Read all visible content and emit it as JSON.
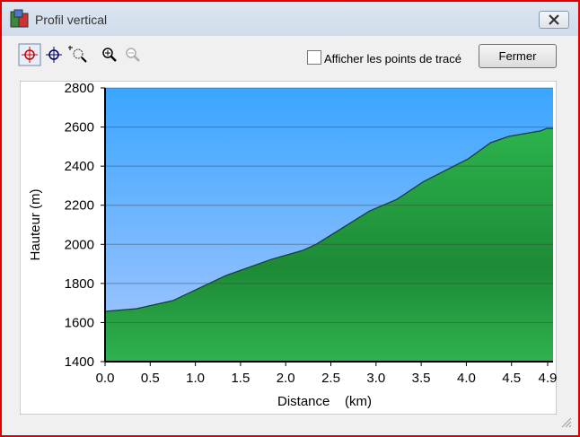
{
  "window": {
    "title": "Profil vertical"
  },
  "toolbar": {
    "checkbox_label": "Afficher les points de tracé",
    "close_button": "Fermer"
  },
  "chart_data": {
    "type": "area",
    "xlabel": "Distance    (km)",
    "ylabel": "Hauteur (m)",
    "x": [
      0,
      0.35,
      0.75,
      1.34,
      1.84,
      2.19,
      2.34,
      2.58,
      2.93,
      3.23,
      3.53,
      4.02,
      4.27,
      4.47,
      4.82,
      4.89,
      4.96
    ],
    "values": [
      1657,
      1671,
      1712,
      1841,
      1923,
      1969,
      2001,
      2070,
      2171,
      2230,
      2322,
      2437,
      2520,
      2552,
      2580,
      2593,
      2593
    ],
    "color": "#1fa040",
    "xlim": [
      0,
      4.96
    ],
    "xticks": [
      {
        "value": 0,
        "label": "0.0"
      },
      0.5,
      {
        "value": 1,
        "label": "1.0"
      },
      1.5,
      {
        "value": 2,
        "label": "2.0"
      },
      2.5,
      {
        "value": 3,
        "label": "3.0"
      },
      3.5,
      {
        "value": 4,
        "label": "4.0"
      },
      4.5,
      4.9
    ],
    "ylim": [
      1400,
      2800
    ],
    "yticks": [
      1400,
      1600,
      1800,
      2000,
      2200,
      2400,
      2600,
      2800
    ],
    "grid": true
  }
}
